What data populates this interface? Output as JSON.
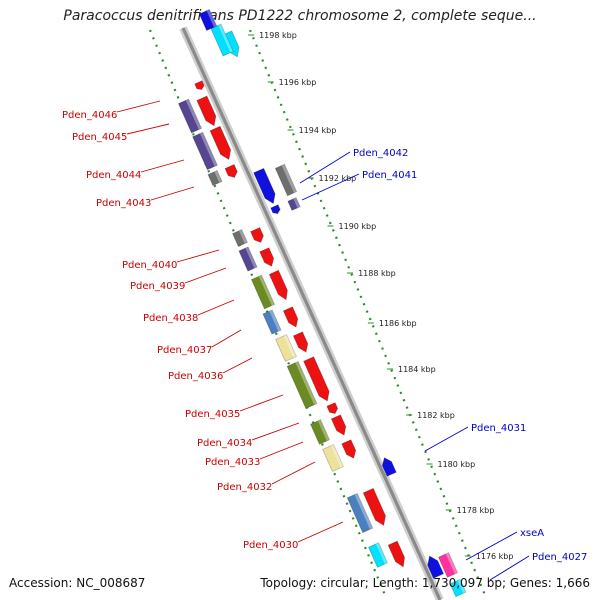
{
  "title": "Paracoccus denitrificans PD1222 chromosome 2, complete seque...",
  "footer": {
    "accession": "Accession: NC_008687",
    "summary": "Topology: circular; Length: 1,730,097 bp; Genes: 1,666"
  },
  "colors": {
    "backbone": "#8a8a8a",
    "tick": "#2e8b2e",
    "forward_gene": "#ee1111",
    "reverse_gene": "#1111dd",
    "purple_feature": "#55468f",
    "gray_feature": "#6e6e6e",
    "olive_feature": "#6b8a22",
    "khaki_feature": "#ece29e",
    "steelblue_feature": "#4a7fc0",
    "cyan_feature": "#00e0ff",
    "magenta_feature": "#ff30a0",
    "left_label": "#cc0000",
    "right_label": "#0000cc"
  },
  "scale_ticks": [
    "1198 kbp",
    "1196 kbp",
    "1194 kbp",
    "1192 kbp",
    "1190 kbp",
    "1188 kbp",
    "1186 kbp",
    "1184 kbp",
    "1182 kbp",
    "1180 kbp",
    "1178 kbp",
    "1176 kbp"
  ],
  "left_labels": [
    "Pden_4046",
    "Pden_4045",
    "Pden_4044",
    "Pden_4043",
    "Pden_4040",
    "Pden_4039",
    "Pden_4038",
    "Pden_4037",
    "Pden_4036",
    "Pden_4035",
    "Pden_4034",
    "Pden_4033",
    "Pden_4032",
    "Pden_4030"
  ],
  "right_labels": [
    "Pden_4042",
    "Pden_4041",
    "Pden_4031",
    "xseA",
    "Pden_4027"
  ]
}
